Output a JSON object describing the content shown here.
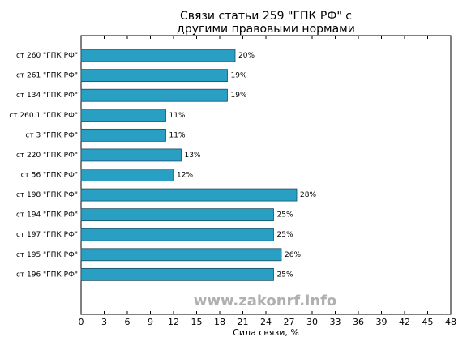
{
  "chart_data": {
    "type": "barh",
    "title": [
      "Связи статьи 259 \"ГПК РФ\" с",
      "другими правовыми нормами"
    ],
    "xlabel": "Сила связи, %",
    "watermark": "www.zakonrf.info",
    "categories": [
      "ст 260 \"ГПК РФ\"",
      "ст 261 \"ГПК РФ\"",
      "ст 134 \"ГПК РФ\"",
      "ст 260.1 \"ГПК РФ\"",
      "ст 3 \"ГПК РФ\"",
      "ст 220 \"ГПК РФ\"",
      "ст 56 \"ГПК РФ\"",
      "ст 198 \"ГПК РФ\"",
      "ст 194 \"ГПК РФ\"",
      "ст 197 \"ГПК РФ\"",
      "ст 195 \"ГПК РФ\"",
      "ст 196 \"ГПК РФ\""
    ],
    "values": [
      20,
      19,
      19,
      11,
      11,
      13,
      12,
      28,
      25,
      25,
      26,
      25
    ],
    "value_labels": [
      "20%",
      "19%",
      "19%",
      "11%",
      "11%",
      "13%",
      "12%",
      "28%",
      "25%",
      "25%",
      "26%",
      "25%"
    ],
    "color": "#2a9fc4",
    "xlim": [
      0,
      48
    ],
    "xticks": [
      0,
      3,
      6,
      9,
      12,
      15,
      18,
      21,
      24,
      27,
      30,
      33,
      36,
      39,
      42,
      45,
      48
    ]
  }
}
